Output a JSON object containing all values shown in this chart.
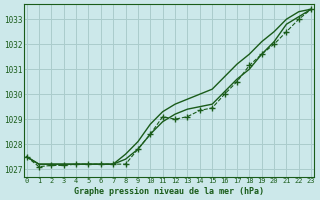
{
  "title": "Graphe pression niveau de la mer (hPa)",
  "background_color": "#cce8ea",
  "grid_color": "#aacccc",
  "line_color": "#1a5c1a",
  "marker_color": "#1a5c1a",
  "xlim_min": -0.2,
  "xlim_max": 23.2,
  "ylim_min": 1026.7,
  "ylim_max": 1033.6,
  "yticks": [
    1027,
    1028,
    1029,
    1030,
    1031,
    1032,
    1033
  ],
  "xticks": [
    0,
    1,
    2,
    3,
    4,
    5,
    6,
    7,
    8,
    9,
    10,
    11,
    12,
    13,
    14,
    15,
    16,
    17,
    18,
    19,
    20,
    21,
    22,
    23
  ],
  "smooth1_x": [
    0,
    1,
    2,
    3,
    4,
    5,
    6,
    7,
    8,
    9,
    10,
    11,
    12,
    13,
    14,
    15,
    16,
    17,
    18,
    19,
    20,
    21,
    22,
    23
  ],
  "smooth1_y": [
    1027.5,
    1027.2,
    1027.2,
    1027.2,
    1027.2,
    1027.2,
    1027.2,
    1027.2,
    1027.4,
    1027.8,
    1028.4,
    1028.9,
    1029.2,
    1029.4,
    1029.5,
    1029.6,
    1030.1,
    1030.6,
    1031.0,
    1031.6,
    1032.1,
    1032.8,
    1033.1,
    1033.4
  ],
  "smooth2_x": [
    0,
    1,
    2,
    3,
    4,
    5,
    6,
    7,
    8,
    9,
    10,
    11,
    12,
    13,
    14,
    15,
    16,
    17,
    18,
    19,
    20,
    21,
    22,
    23
  ],
  "smooth2_y": [
    1027.5,
    1027.2,
    1027.2,
    1027.2,
    1027.2,
    1027.2,
    1027.2,
    1027.2,
    1027.6,
    1028.1,
    1028.8,
    1029.3,
    1029.6,
    1029.8,
    1030.0,
    1030.2,
    1030.7,
    1031.2,
    1031.6,
    1032.1,
    1032.5,
    1033.0,
    1033.3,
    1033.4
  ],
  "marker_x": [
    0,
    1,
    2,
    3,
    4,
    5,
    6,
    7,
    8,
    9,
    10,
    11,
    12,
    13,
    14,
    15,
    16,
    17,
    18,
    19,
    20,
    21,
    22,
    23
  ],
  "marker_y": [
    1027.5,
    1027.1,
    1027.15,
    1027.15,
    1027.2,
    1027.2,
    1027.2,
    1027.2,
    1027.2,
    1027.8,
    1028.4,
    1029.1,
    1029.0,
    1029.1,
    1029.35,
    1029.45,
    1030.0,
    1030.5,
    1031.15,
    1031.6,
    1032.0,
    1032.5,
    1033.0,
    1033.4
  ]
}
